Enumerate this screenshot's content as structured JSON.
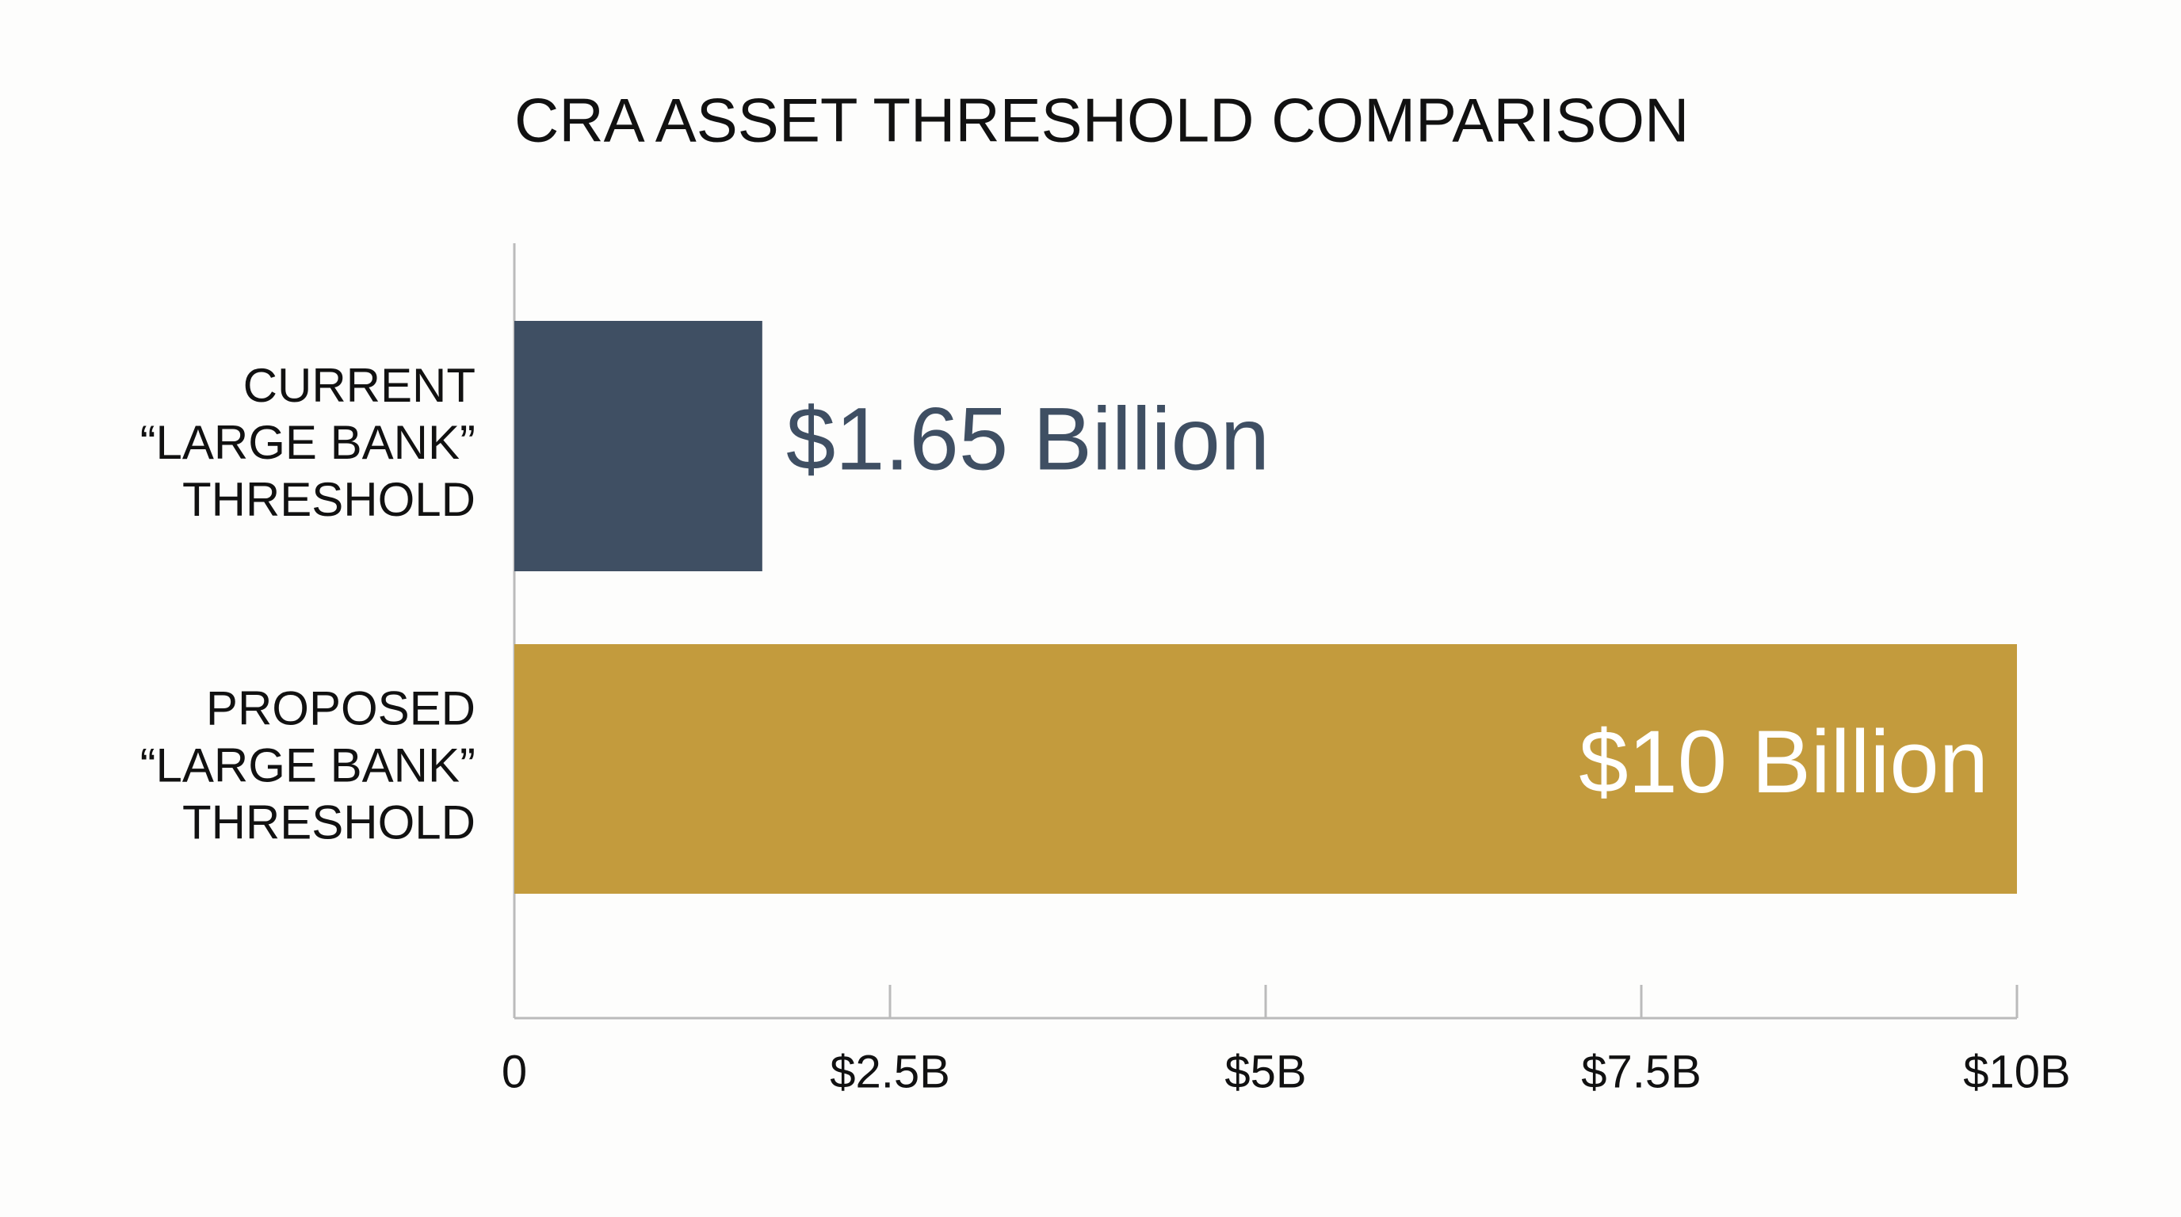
{
  "chart_data": {
    "type": "hbar",
    "title": "CRA ASSET THRESHOLD COMPARISON",
    "categories": [
      "CURRENT\n“LARGE BANK”\nTHRESHOLD",
      "PROPOSED\n“LARGE BANK”\nTHRESHOLD"
    ],
    "values": [
      1.65,
      10
    ],
    "value_labels": [
      "$1.65 Billion",
      "$10 Billion"
    ],
    "colors": [
      "#3f4f63",
      "#c39b3d"
    ],
    "xlim": [
      0,
      10
    ],
    "xticks": [
      0,
      {
        "value": 2.5,
        "label": "$2.5B"
      },
      {
        "value": 5,
        "label": "$5B"
      },
      {
        "value": 7.5,
        "label": "$7.5B"
      },
      {
        "value": 10,
        "label": "$10B"
      }
    ]
  }
}
